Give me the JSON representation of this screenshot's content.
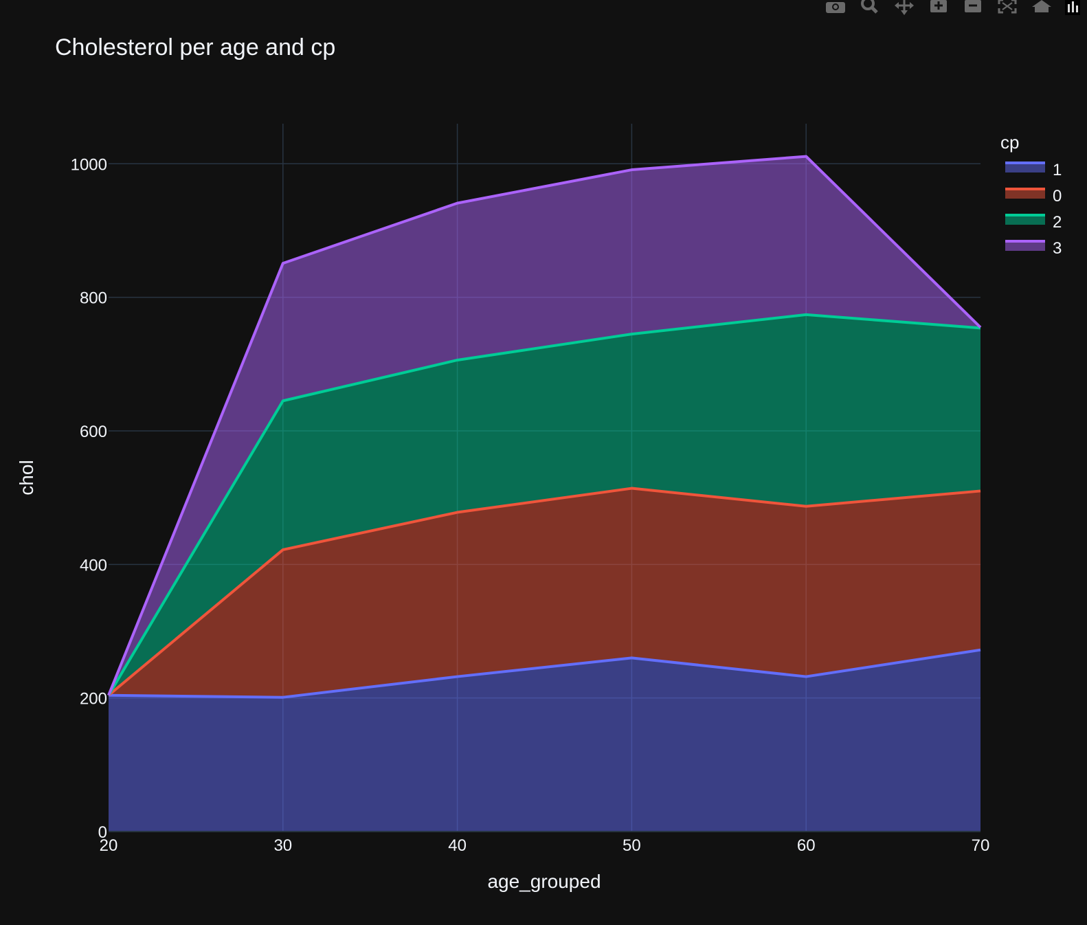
{
  "colors": {
    "background": "#111111",
    "grid": "#283442",
    "text": "#f2f5fa",
    "series": [
      "#636efa",
      "#EF553B",
      "#00cc96",
      "#ab63fa"
    ]
  },
  "modebar": {
    "buttons": [
      {
        "name": "download-plot-button",
        "icon": "camera-icon"
      },
      {
        "name": "zoom-button",
        "icon": "zoom-icon"
      },
      {
        "name": "pan-button",
        "icon": "pan-icon"
      },
      {
        "name": "zoom-in-button",
        "icon": "plus-icon"
      },
      {
        "name": "zoom-out-button",
        "icon": "minus-icon"
      },
      {
        "name": "autoscale-button",
        "icon": "autoscale-icon"
      },
      {
        "name": "reset-axes-button",
        "icon": "home-icon"
      },
      {
        "name": "plotly-logo-button",
        "icon": "plotly-logo-icon"
      }
    ]
  },
  "chart_data": {
    "type": "area",
    "stacked": true,
    "title": "Cholesterol per age and cp",
    "xlabel": "age_grouped",
    "ylabel": "chol",
    "x": [
      20,
      30,
      40,
      50,
      60,
      70
    ],
    "xlim": [
      20,
      70
    ],
    "ylim": [
      0,
      1060
    ],
    "xticks": [
      20,
      30,
      40,
      50,
      60,
      70
    ],
    "yticks": [
      0,
      200,
      400,
      600,
      800,
      1000
    ],
    "grid": true,
    "legend": {
      "title": "cp",
      "position": "top-right"
    },
    "series": [
      {
        "name": "1",
        "values": [
          204,
          201,
          232,
          260,
          232,
          272
        ]
      },
      {
        "name": "0",
        "values": [
          0,
          221,
          246,
          254,
          255,
          238
        ]
      },
      {
        "name": "2",
        "values": [
          0,
          223,
          228,
          231,
          287,
          244
        ]
      },
      {
        "name": "3",
        "values": [
          0,
          206,
          235,
          246,
          237,
          1
        ]
      }
    ]
  }
}
